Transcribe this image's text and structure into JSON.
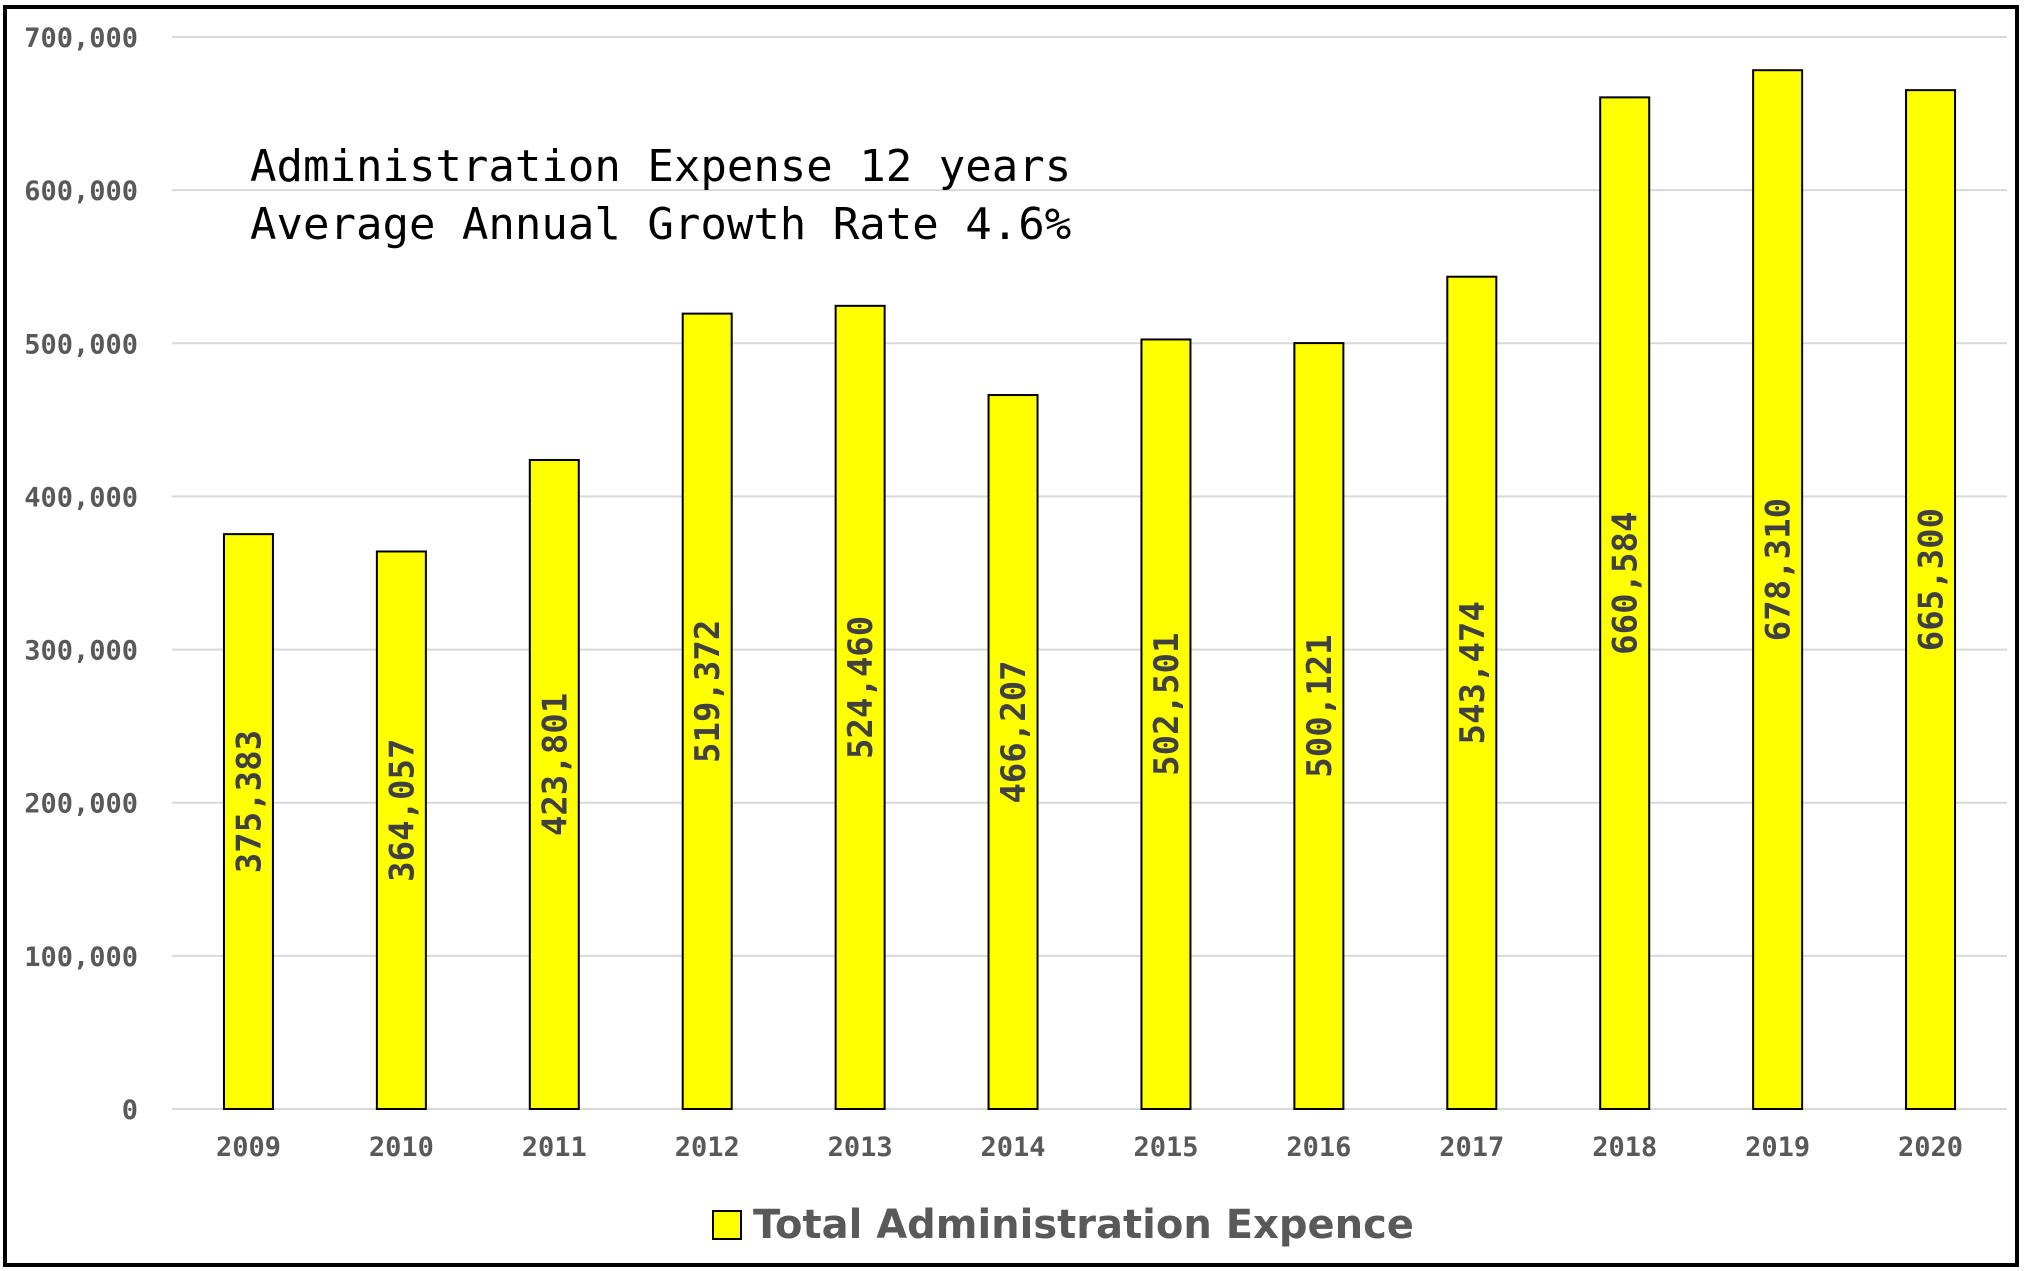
{
  "chart_data": {
    "type": "bar",
    "categories": [
      "2009",
      "2010",
      "2011",
      "2012",
      "2013",
      "2014",
      "2015",
      "2016",
      "2017",
      "2018",
      "2019",
      "2020"
    ],
    "series": [
      {
        "name": "Total Administration Expence",
        "values": [
          375383,
          364057,
          423801,
          519372,
          524460,
          466207,
          502501,
          500121,
          543474,
          660584,
          678310,
          665300
        ],
        "labels": [
          "375,383",
          "364,057",
          "423,801",
          "519,372",
          "524,460",
          "466,207",
          "502,501",
          "500,121",
          "543,474",
          "660,584",
          "678,310",
          "665,300"
        ],
        "color": "#FFFF00"
      }
    ],
    "annotations": [
      "Administration Expense 12 years",
      "Average Annual Growth Rate 4.6%"
    ],
    "ylim": [
      0,
      700000
    ],
    "yticks": [
      0,
      100000,
      200000,
      300000,
      400000,
      500000,
      600000,
      700000
    ],
    "ytick_labels": [
      "0",
      "100,000",
      "200,000",
      "300,000",
      "400,000",
      "500,000",
      "600,000",
      "700,000"
    ],
    "grid": true,
    "legend_position": "bottom",
    "xlabel": "",
    "ylabel": "",
    "title": ""
  }
}
